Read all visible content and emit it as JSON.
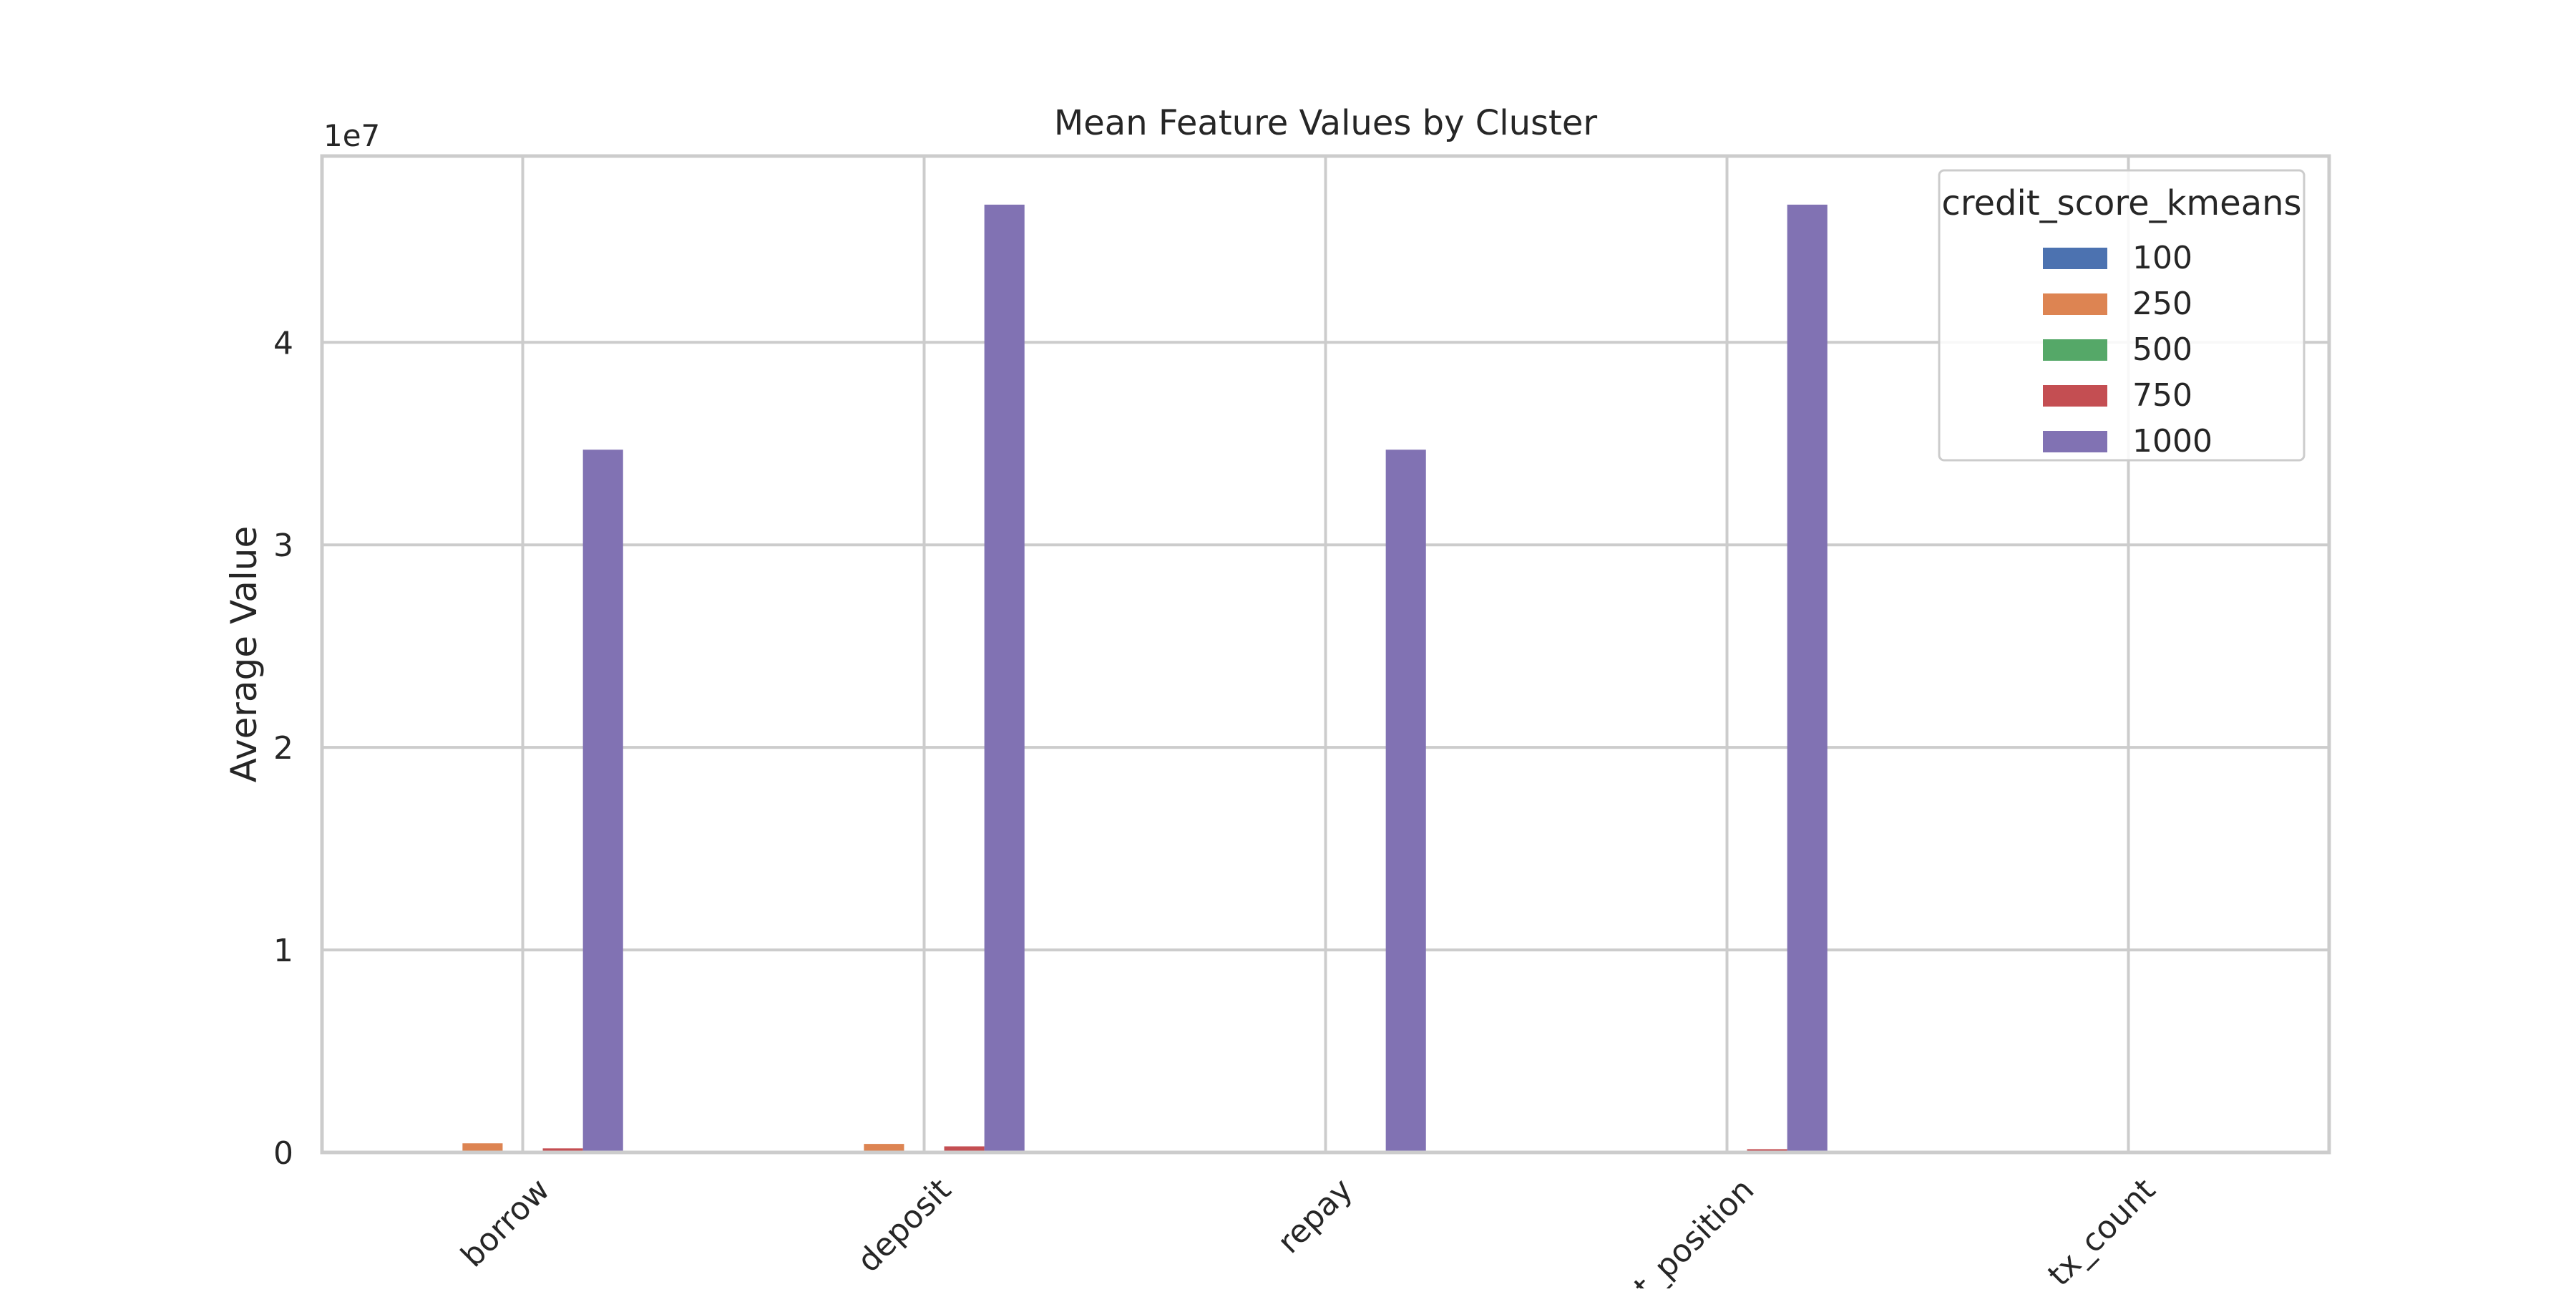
{
  "chart_data": {
    "type": "bar",
    "title": "Mean Feature Values by Cluster",
    "xlabel": "",
    "ylabel": "Average Value",
    "y_scale_label": "1e7",
    "y_scale_factor": 10000000,
    "ylim": [
      0,
      49200000
    ],
    "yticks": [
      0,
      10000000,
      20000000,
      30000000,
      40000000
    ],
    "ytick_labels": [
      "0",
      "1",
      "2",
      "3",
      "4"
    ],
    "grid": true,
    "legend_title": "credit_score_kmeans",
    "legend_position": "top-right",
    "categories": [
      "borrow",
      "deposit",
      "repay",
      "net_position",
      "tx_count"
    ],
    "series": [
      {
        "name": "100",
        "color": "#4c72b0",
        "values": [
          10000,
          10000,
          5000,
          0,
          0
        ]
      },
      {
        "name": "250",
        "color": "#dd8452",
        "values": [
          450000,
          420000,
          40000,
          30000,
          0
        ]
      },
      {
        "name": "500",
        "color": "#55a868",
        "values": [
          15000,
          15000,
          8000,
          5000,
          0
        ]
      },
      {
        "name": "750",
        "color": "#c44e52",
        "values": [
          200000,
          300000,
          50000,
          160000,
          0
        ]
      },
      {
        "name": "1000",
        "color": "#8172b3",
        "values": [
          34700000,
          46800000,
          34700000,
          46800000,
          0
        ]
      }
    ]
  }
}
